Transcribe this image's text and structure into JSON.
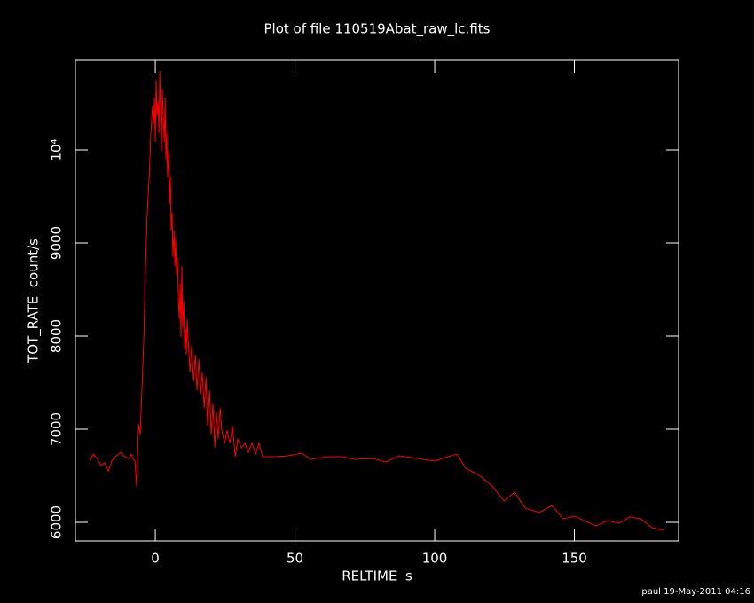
{
  "chart_data": {
    "type": "line",
    "title": "Plot of file 110519Abat_raw_lc.fits",
    "x_label": "RELTIME  s",
    "y_label": "TOT_RATE  count/s",
    "footer": "paul 19-May-2011 04:16",
    "color": "#ff0000",
    "xlim": [
      -28.6,
      187.3
    ],
    "ylim": [
      5800,
      10962
    ],
    "xticks": [
      0,
      50,
      100,
      150
    ],
    "yticks": [
      6000,
      7000,
      8000,
      9000,
      {
        "value": 10000,
        "label": "10⁴"
      }
    ],
    "x": [
      -23.5,
      -22.2,
      -20.6,
      -19.4,
      -18.1,
      -16.8,
      -15.6,
      -14.3,
      -12.4,
      -11.1,
      -9.5,
      -8.6,
      -7.9,
      -7.3,
      -6.7,
      -6.0,
      -5.4,
      -4.8,
      -4.1,
      -3.5,
      -2.9,
      -2.2,
      -1.6,
      -1.0,
      -0.6,
      -0.3,
      0,
      0.3,
      0.6,
      1.0,
      1.3,
      1.6,
      1.9,
      2.2,
      2.5,
      2.9,
      3.2,
      3.5,
      3.8,
      4.1,
      4.4,
      4.8,
      5.1,
      5.4,
      5.7,
      6.0,
      6.3,
      6.7,
      7.0,
      7.3,
      7.6,
      7.9,
      8.3,
      8.6,
      8.9,
      9.2,
      9.5,
      9.8,
      10.2,
      10.5,
      10.8,
      11.1,
      11.4,
      11.7,
      12.4,
      13.0,
      13.7,
      14.3,
      14.9,
      15.6,
      16.2,
      16.8,
      17.5,
      18.1,
      18.7,
      19.4,
      20.0,
      20.6,
      21.3,
      21.9,
      22.5,
      23.2,
      23.8,
      24.8,
      25.7,
      26.7,
      27.6,
      28.6,
      29.5,
      30.8,
      32.1,
      33.3,
      34.6,
      35.9,
      37.1,
      38.4,
      42.9,
      47.6,
      52.4,
      55.6,
      61.9,
      66.7,
      71.4,
      77.8,
      82.5,
      87.3,
      93.7,
      100,
      104.8,
      108.0,
      111.1,
      115.9,
      120.6,
      124.8,
      128.6,
      132.4,
      137.5,
      142.0,
      146.0,
      150.2,
      154.0,
      157.8,
      161.9,
      166.0,
      169.8,
      173.7,
      177.8,
      181.9
    ],
    "values": [
      6657,
      6733,
      6676,
      6610,
      6638,
      6552,
      6657,
      6705,
      6752,
      6705,
      6686,
      6733,
      6676,
      6657,
      6390,
      7057,
      6943,
      7419,
      7990,
      8752,
      9324,
      9705,
      10181,
      10467,
      10276,
      10562,
      10086,
      10752,
      10371,
      10514,
      10181,
      10848,
      10419,
      9990,
      10657,
      10324,
      10086,
      10562,
      9895,
      10181,
      9705,
      9990,
      9419,
      9705,
      9133,
      9324,
      8848,
      9133,
      8752,
      9038,
      8657,
      8848,
      8371,
      8181,
      8562,
      7990,
      8752,
      8086,
      8371,
      7848,
      8086,
      7800,
      8181,
      7990,
      7610,
      7895,
      7514,
      7800,
      7419,
      7752,
      7371,
      7610,
      7229,
      7562,
      7038,
      7419,
      6943,
      7276,
      6800,
      7181,
      6895,
      7229,
      6990,
      6848,
      6990,
      6848,
      7038,
      6705,
      6895,
      6800,
      6848,
      6752,
      6848,
      6733,
      6848,
      6705,
      6705,
      6714,
      6743,
      6676,
      6705,
      6705,
      6676,
      6686,
      6648,
      6714,
      6686,
      6657,
      6705,
      6733,
      6581,
      6505,
      6390,
      6229,
      6324,
      6152,
      6105,
      6181,
      6038,
      6067,
      6010,
      5962,
      6019,
      5990,
      6057,
      6038,
      5943,
      5914
    ]
  }
}
